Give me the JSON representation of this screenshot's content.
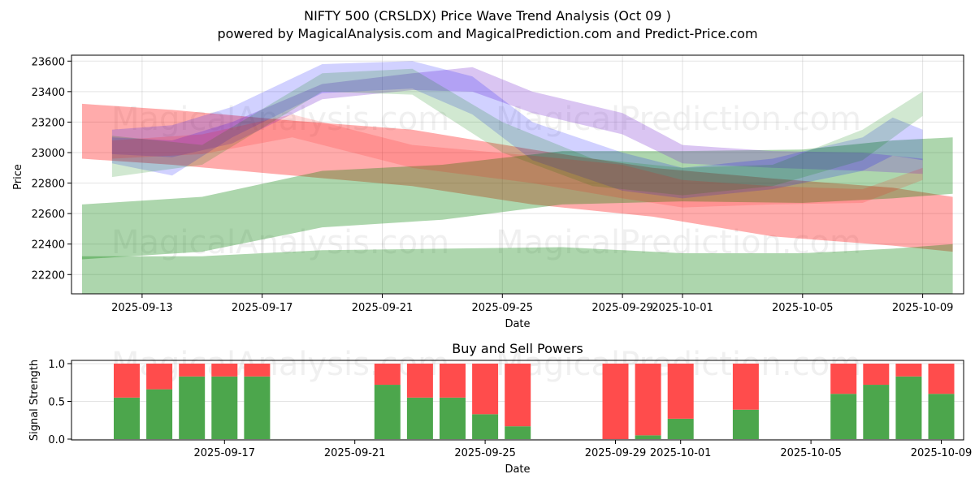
{
  "header": {
    "title": "NIFTY 500 (CRSLDX) Price Wave Trend Analysis (Oct 09 )",
    "subtitle": "powered by MagicalAnalysis.com and MagicalPrediction.com and Predict-Price.com"
  },
  "watermarks": [
    "MagicalAnalysis.com",
    "MagicalPrediction.com"
  ],
  "colors": {
    "red": "#ff0000",
    "green": "#008000",
    "blue": "#0000ff",
    "purple": "#7b2fd0",
    "buy": "#4ca64c",
    "sell": "#ff4c4c"
  },
  "chart_data": [
    {
      "type": "area",
      "title": "",
      "xlabel": "Date",
      "ylabel": "Price",
      "ylim": [
        22060,
        23630
      ],
      "xlim": [
        "2025-09-10",
        "2025-10-10"
      ],
      "grid": true,
      "x_ticks": [
        "2025-09-13",
        "2025-09-17",
        "2025-09-21",
        "2025-09-25",
        "2025-09-29",
        "2025-10-01",
        "2025-10-05",
        "2025-10-09"
      ],
      "y_ticks": [
        22200,
        22400,
        22600,
        22800,
        23000,
        23200,
        23400,
        23600
      ],
      "bands": [
        {
          "name": "red-long-band",
          "color": "red",
          "opacity": 0.33,
          "x": [
            "2025-09-11",
            "2025-09-14",
            "2025-09-18",
            "2025-09-22",
            "2025-09-26",
            "2025-09-30",
            "2025-10-04",
            "2025-10-08",
            "2025-10-10"
          ],
          "upper": [
            23320,
            23280,
            23210,
            23150,
            23020,
            22900,
            22830,
            22770,
            22710
          ],
          "lower": [
            22960,
            22920,
            22850,
            22780,
            22660,
            22580,
            22450,
            22390,
            22350
          ]
        },
        {
          "name": "green-upper-band",
          "color": "green",
          "opacity": 0.32,
          "x": [
            "2025-09-11",
            "2025-09-15",
            "2025-09-19",
            "2025-09-23",
            "2025-09-27",
            "2025-10-01",
            "2025-10-05",
            "2025-10-08",
            "2025-10-10"
          ],
          "upper": [
            22660,
            22710,
            22880,
            22920,
            23010,
            23010,
            23020,
            23080,
            23100
          ],
          "lower": [
            22300,
            22350,
            22510,
            22560,
            22660,
            22680,
            22670,
            22700,
            22730
          ]
        },
        {
          "name": "green-lower-band",
          "color": "green",
          "opacity": 0.32,
          "x": [
            "2025-09-11",
            "2025-09-15",
            "2025-09-19",
            "2025-09-23",
            "2025-09-27",
            "2025-10-01",
            "2025-10-05",
            "2025-10-08",
            "2025-10-10"
          ],
          "upper": [
            22320,
            22320,
            22360,
            22370,
            22380,
            22340,
            22340,
            22370,
            22400
          ],
          "lower": [
            22060,
            22060,
            22060,
            22060,
            22060,
            22060,
            22060,
            22060,
            22060
          ]
        },
        {
          "name": "purple-wave-band",
          "color": "purple",
          "opacity": 0.28,
          "x": [
            "2025-09-12",
            "2025-09-14",
            "2025-09-16",
            "2025-09-19",
            "2025-09-22",
            "2025-09-24",
            "2025-09-26",
            "2025-09-29",
            "2025-10-01",
            "2025-10-04",
            "2025-10-07",
            "2025-10-09"
          ],
          "upper": [
            23100,
            23080,
            23200,
            23450,
            23520,
            23560,
            23400,
            23260,
            23050,
            23010,
            23000,
            22960
          ],
          "lower": [
            22990,
            22970,
            23060,
            23350,
            23410,
            23400,
            23260,
            23120,
            22930,
            22900,
            22880,
            22860
          ]
        },
        {
          "name": "blue-wave-band",
          "color": "blue",
          "opacity": 0.18,
          "x": [
            "2025-09-12",
            "2025-09-14",
            "2025-09-16",
            "2025-09-19",
            "2025-09-22",
            "2025-09-24",
            "2025-09-26",
            "2025-09-29",
            "2025-10-01",
            "2025-10-04",
            "2025-10-07",
            "2025-10-08",
            "2025-10-09"
          ],
          "upper": [
            23150,
            23180,
            23300,
            23580,
            23600,
            23500,
            23200,
            23000,
            22900,
            22960,
            23100,
            23230,
            23150
          ],
          "lower": [
            22930,
            22850,
            23100,
            23390,
            23420,
            23250,
            22950,
            22750,
            22700,
            22760,
            22880,
            22980,
            22950
          ]
        },
        {
          "name": "teal-wave-band",
          "color": "green",
          "opacity": 0.18,
          "x": [
            "2025-09-12",
            "2025-09-15",
            "2025-09-19",
            "2025-09-22",
            "2025-09-25",
            "2025-09-28",
            "2025-10-01",
            "2025-10-04",
            "2025-10-07",
            "2025-10-09"
          ],
          "upper": [
            23110,
            23050,
            23520,
            23550,
            23200,
            22960,
            22900,
            22920,
            23150,
            23400
          ],
          "lower": [
            22840,
            22920,
            23400,
            23380,
            23000,
            22780,
            22720,
            22780,
            22950,
            23240
          ]
        },
        {
          "name": "olive-wave-band",
          "color": "red",
          "opacity": 0.15,
          "x": [
            "2025-09-12",
            "2025-09-15",
            "2025-09-18",
            "2025-09-22",
            "2025-09-26",
            "2025-09-29",
            "2025-10-01",
            "2025-10-04",
            "2025-10-07",
            "2025-10-09"
          ],
          "upper": [
            23080,
            23120,
            23250,
            23050,
            22980,
            22920,
            22820,
            22780,
            22760,
            22900
          ],
          "lower": [
            22960,
            22990,
            23100,
            22900,
            22800,
            22700,
            22640,
            22660,
            22670,
            22820
          ]
        }
      ]
    },
    {
      "type": "bar",
      "title": "Buy and Sell Powers",
      "xlabel": "Date",
      "ylabel": "Signal Strength",
      "ylim": [
        0,
        1.05
      ],
      "xlim": [
        "2025-09-11",
        "2025-10-11"
      ],
      "grid": true,
      "x_ticks": [
        "2025-09-17",
        "2025-09-21",
        "2025-09-25",
        "2025-09-29",
        "2025-10-01",
        "2025-10-05",
        "2025-10-09"
      ],
      "y_ticks": [
        "0.0",
        "0.5",
        "1.0"
      ],
      "categories": [
        "2025-09-14",
        "2025-09-15",
        "2025-09-16",
        "2025-09-17",
        "2025-09-18",
        "2025-09-22",
        "2025-09-23",
        "2025-09-24",
        "2025-09-25",
        "2025-09-26",
        "2025-09-29",
        "2025-09-30",
        "2025-10-01",
        "2025-10-03",
        "2025-10-06",
        "2025-10-07",
        "2025-10-08",
        "2025-10-09"
      ],
      "series": [
        {
          "name": "Buy",
          "color": "buy",
          "values": [
            0.55,
            0.66,
            0.83,
            0.83,
            0.83,
            0.72,
            0.55,
            0.55,
            0.33,
            0.17,
            0.0,
            0.05,
            0.27,
            0.39,
            0.6,
            0.72,
            0.83,
            0.6
          ]
        },
        {
          "name": "Sell",
          "color": "sell",
          "values": [
            0.45,
            0.34,
            0.17,
            0.17,
            0.17,
            0.28,
            0.45,
            0.45,
            0.67,
            0.83,
            1.0,
            0.95,
            0.73,
            0.61,
            0.4,
            0.28,
            0.17,
            0.4
          ]
        }
      ]
    }
  ]
}
